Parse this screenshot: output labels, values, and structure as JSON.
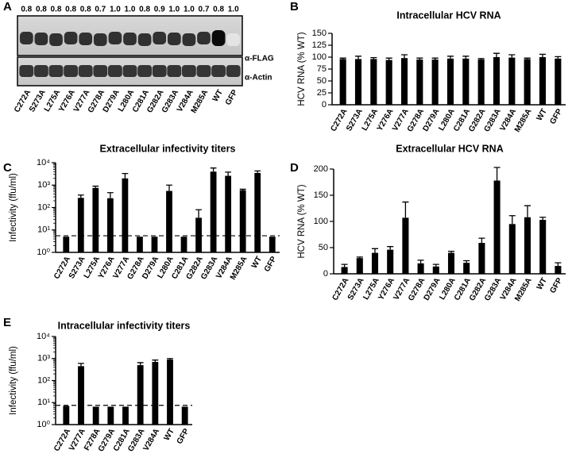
{
  "blot": {
    "panel": "A",
    "ratios": [
      "0.8",
      "0.8",
      "0.8",
      "0.8",
      "0.8",
      "0.7",
      "1.0",
      "1.0",
      "0.8",
      "0.9",
      "1.0",
      "1.0",
      "0.7",
      "0.8",
      "1.0"
    ],
    "lanes": [
      "C272A",
      "S273A",
      "L275A",
      "Y276A",
      "V277A",
      "G278A",
      "D279A",
      "L280A",
      "C281A",
      "G282A",
      "G283A",
      "V284A",
      "M285A",
      "WT",
      "GFP"
    ],
    "top_label": "α-FLAG",
    "bottom_label": "α-Actin"
  },
  "chart_data": [
    {
      "type": "bar",
      "panel": "B",
      "title": "Intracellular HCV RNA",
      "ylabel": "HCV RNA (% WT)",
      "color": "#000000",
      "categories": [
        "C272A",
        "S273A",
        "L275A",
        "Y276A",
        "V277A",
        "G278A",
        "D279A",
        "L280A",
        "C281A",
        "G282A",
        "G283A",
        "V284A",
        "M285A",
        "WT",
        "GFP"
      ],
      "values": [
        96,
        96,
        96,
        94,
        98,
        95,
        95,
        97,
        97,
        95,
        100,
        99,
        96,
        100,
        97
      ],
      "errors": [
        2,
        6,
        3,
        4,
        7,
        3,
        3,
        5,
        5,
        2,
        8,
        6,
        2,
        6,
        4
      ],
      "ylim": [
        0,
        150
      ],
      "yticks": [
        0,
        25,
        50,
        75,
        100,
        125,
        150
      ]
    },
    {
      "type": "bar",
      "panel": "C",
      "title": "Extracellular infectivity titers",
      "ylabel": "Infectivity (ffu/ml)",
      "color": "#000000",
      "log": true,
      "categories": [
        "C272A",
        "S273A",
        "L275A",
        "Y276A",
        "V277A",
        "G278A",
        "D279A",
        "L280A",
        "C281A",
        "G282A",
        "G283A",
        "V284A",
        "M285A",
        "WT",
        "GFP"
      ],
      "values": [
        5,
        270,
        750,
        260,
        2000,
        5,
        5,
        550,
        5,
        35,
        4000,
        2600,
        600,
        3500,
        5
      ],
      "errors": [
        0,
        90,
        150,
        200,
        1300,
        0,
        0,
        450,
        0,
        45,
        1800,
        1200,
        60,
        800,
        0
      ],
      "threshold": 5.5,
      "ylim": [
        1,
        10000
      ],
      "yticks": [
        {
          "value": 1,
          "label": "10⁰"
        },
        {
          "value": 10,
          "label": "10¹"
        },
        {
          "value": 100,
          "label": "10²"
        },
        {
          "value": 1000,
          "label": "10³"
        },
        {
          "value": 10000,
          "label": "10⁴"
        }
      ]
    },
    {
      "type": "bar",
      "panel": "D",
      "title": "Extracellular HCV RNA",
      "ylabel": "HCV RNA (% WT)",
      "color": "#000000",
      "categories": [
        "C272A",
        "S273A",
        "L275A",
        "Y276A",
        "V277A",
        "G278A",
        "D279A",
        "L280A",
        "C281A",
        "G282A",
        "G283A",
        "V284A",
        "M285A",
        "WT",
        "GFP"
      ],
      "values": [
        13,
        30,
        40,
        46,
        107,
        20,
        14,
        40,
        21,
        59,
        178,
        95,
        108,
        103,
        15
      ],
      "errors": [
        5,
        2,
        8,
        6,
        30,
        6,
        4,
        3,
        4,
        9,
        25,
        16,
        22,
        5,
        6
      ],
      "ylim": [
        0,
        200
      ],
      "yticks": [
        0,
        50,
        100,
        150,
        200
      ]
    },
    {
      "type": "bar",
      "panel": "E",
      "title": "Intracellular infectivity titers",
      "ylabel": "Infectivity (ffu/ml)",
      "color": "#000000",
      "log": true,
      "categories": [
        "C272A",
        "V277A",
        "F278A",
        "G279A",
        "C281A",
        "G283A",
        "V284A",
        "WT",
        "GFP"
      ],
      "values": [
        7,
        450,
        6.5,
        6.5,
        6.5,
        500,
        700,
        900,
        6.5
      ],
      "errors": [
        0,
        150,
        0,
        0,
        0,
        150,
        150,
        100,
        0
      ],
      "threshold": 7.5,
      "ylim": [
        1,
        10000
      ],
      "yticks": [
        {
          "value": 1,
          "label": "10⁰"
        },
        {
          "value": 10,
          "label": "10¹"
        },
        {
          "value": 100,
          "label": "10²"
        },
        {
          "value": 1000,
          "label": "10³"
        },
        {
          "value": 10000,
          "label": "10⁴"
        }
      ]
    }
  ]
}
